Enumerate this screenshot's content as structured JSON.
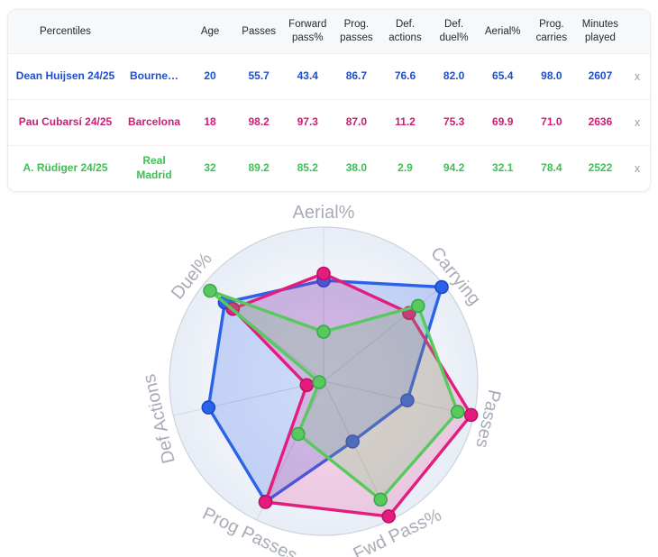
{
  "table": {
    "header": {
      "percentiles": "Percentiles",
      "columns": [
        "Age",
        "Passes",
        "Forward pass%",
        "Prog. passes",
        "Def. actions",
        "Def. duel%",
        "Aerial%",
        "Prog. carries",
        "Minutes played"
      ]
    },
    "rows": [
      {
        "player": "Dean Huijsen 24/25",
        "team": "Bourne…",
        "color": "#1e4fd1",
        "values": [
          "20",
          "55.7",
          "43.4",
          "86.7",
          "76.6",
          "82.0",
          "65.4",
          "98.0",
          "2607"
        ],
        "remove": "x"
      },
      {
        "player": "Pau Cubarsí 24/25",
        "team": "Barcelona",
        "color": "#cf1d74",
        "values": [
          "18",
          "98.2",
          "97.3",
          "87.0",
          "11.2",
          "75.3",
          "69.9",
          "71.0",
          "2636"
        ],
        "remove": "x"
      },
      {
        "player": "A. Rüdiger 24/25",
        "team": "Real Madrid",
        "color": "#3ec055",
        "values": [
          "32",
          "89.2",
          "85.2",
          "38.0",
          "2.9",
          "94.2",
          "32.1",
          "78.4",
          "2522"
        ],
        "remove": "x"
      }
    ]
  },
  "chart_data": {
    "type": "radar",
    "axes": [
      "Aerial%",
      "Carrying",
      "Passes",
      "Fwd Pass%",
      "Prog Passes",
      "Def Actions",
      "Duel%"
    ],
    "range": [
      0,
      100
    ],
    "grid": "spokes-and-outer-circle",
    "legend_position": "none (series keyed by table row colors)",
    "series": [
      {
        "name": "Dean Huijsen 24/25",
        "color": "#2b62e9",
        "dot_stroke": "#1c49c2",
        "fill": "rgba(43,98,233,0.23)",
        "values": [
          65.4,
          98.0,
          55.7,
          43.4,
          86.7,
          76.6,
          82.0
        ]
      },
      {
        "name": "Pau Cubarsí 24/25",
        "color": "#e31d7d",
        "dot_stroke": "#c01063",
        "fill": "rgba(227,29,125,0.18)",
        "values": [
          69.9,
          71.0,
          98.2,
          97.3,
          87.0,
          11.2,
          75.3
        ]
      },
      {
        "name": "A. Rüdiger 24/25",
        "color": "#58c95e",
        "dot_stroke": "#3aa94a",
        "fill": "rgba(88,201,94,0.20)",
        "values": [
          32.1,
          78.4,
          89.2,
          85.2,
          38.0,
          2.9,
          94.2
        ]
      }
    ],
    "style": {
      "grid_color": "#d6dae2",
      "ring_color": "#cdd3dd",
      "label_color": "#a7acb6",
      "bg_inner": "#ffffff",
      "bg_mid": "#f4f6fa",
      "bg_outer": "#e8edf6"
    }
  }
}
